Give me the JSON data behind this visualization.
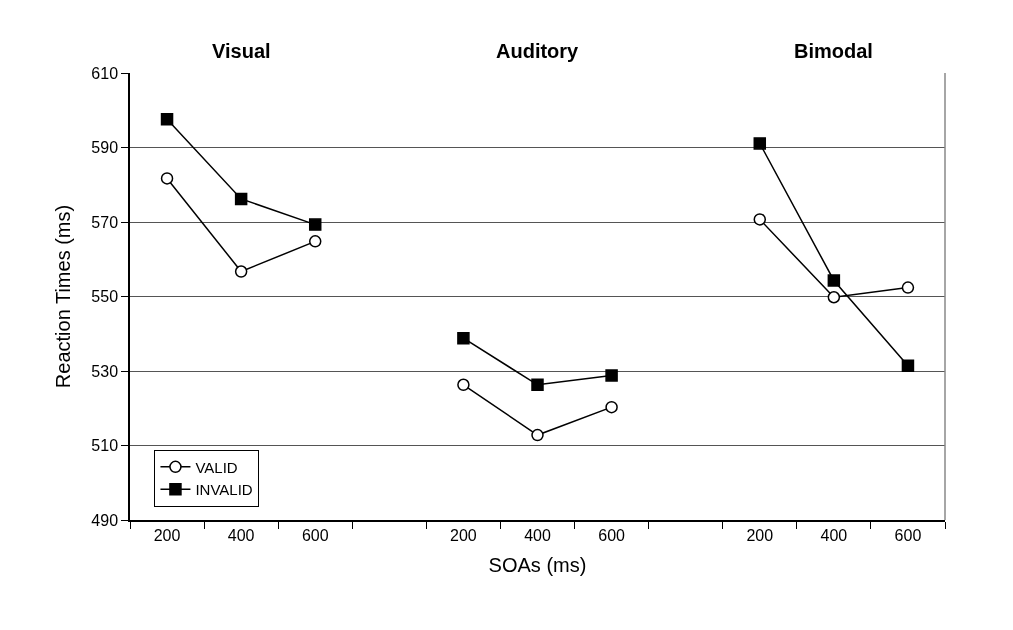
{
  "chart_data": {
    "type": "line",
    "xlabel": "SOAs (ms)",
    "ylabel": "Reaction Times (ms)",
    "annotations": [
      "Visual",
      "Auditory",
      "Bimodal"
    ],
    "categories": [
      "200",
      "400",
      "600",
      null,
      "200",
      "400",
      "600",
      null,
      "200",
      "400",
      "600"
    ],
    "series": [
      {
        "name": "VALID",
        "color": "#000000",
        "marker": "circle",
        "values": [
          581.7,
          556.7,
          564.8,
          null,
          526.3,
          512.8,
          520.3,
          null,
          570.7,
          549.8,
          552.4
        ]
      },
      {
        "name": "INVALID",
        "color": "#000000",
        "marker": "square",
        "values": [
          597.6,
          576.2,
          569.3,
          null,
          538.8,
          526.3,
          528.8,
          null,
          591.1,
          554.3,
          531.4
        ]
      }
    ],
    "ylim": [
      490,
      610
    ],
    "yticks": [
      490,
      510,
      530,
      550,
      570,
      590,
      610
    ],
    "grid": "y",
    "legend": "bottom left",
    "line_style": "solid"
  }
}
